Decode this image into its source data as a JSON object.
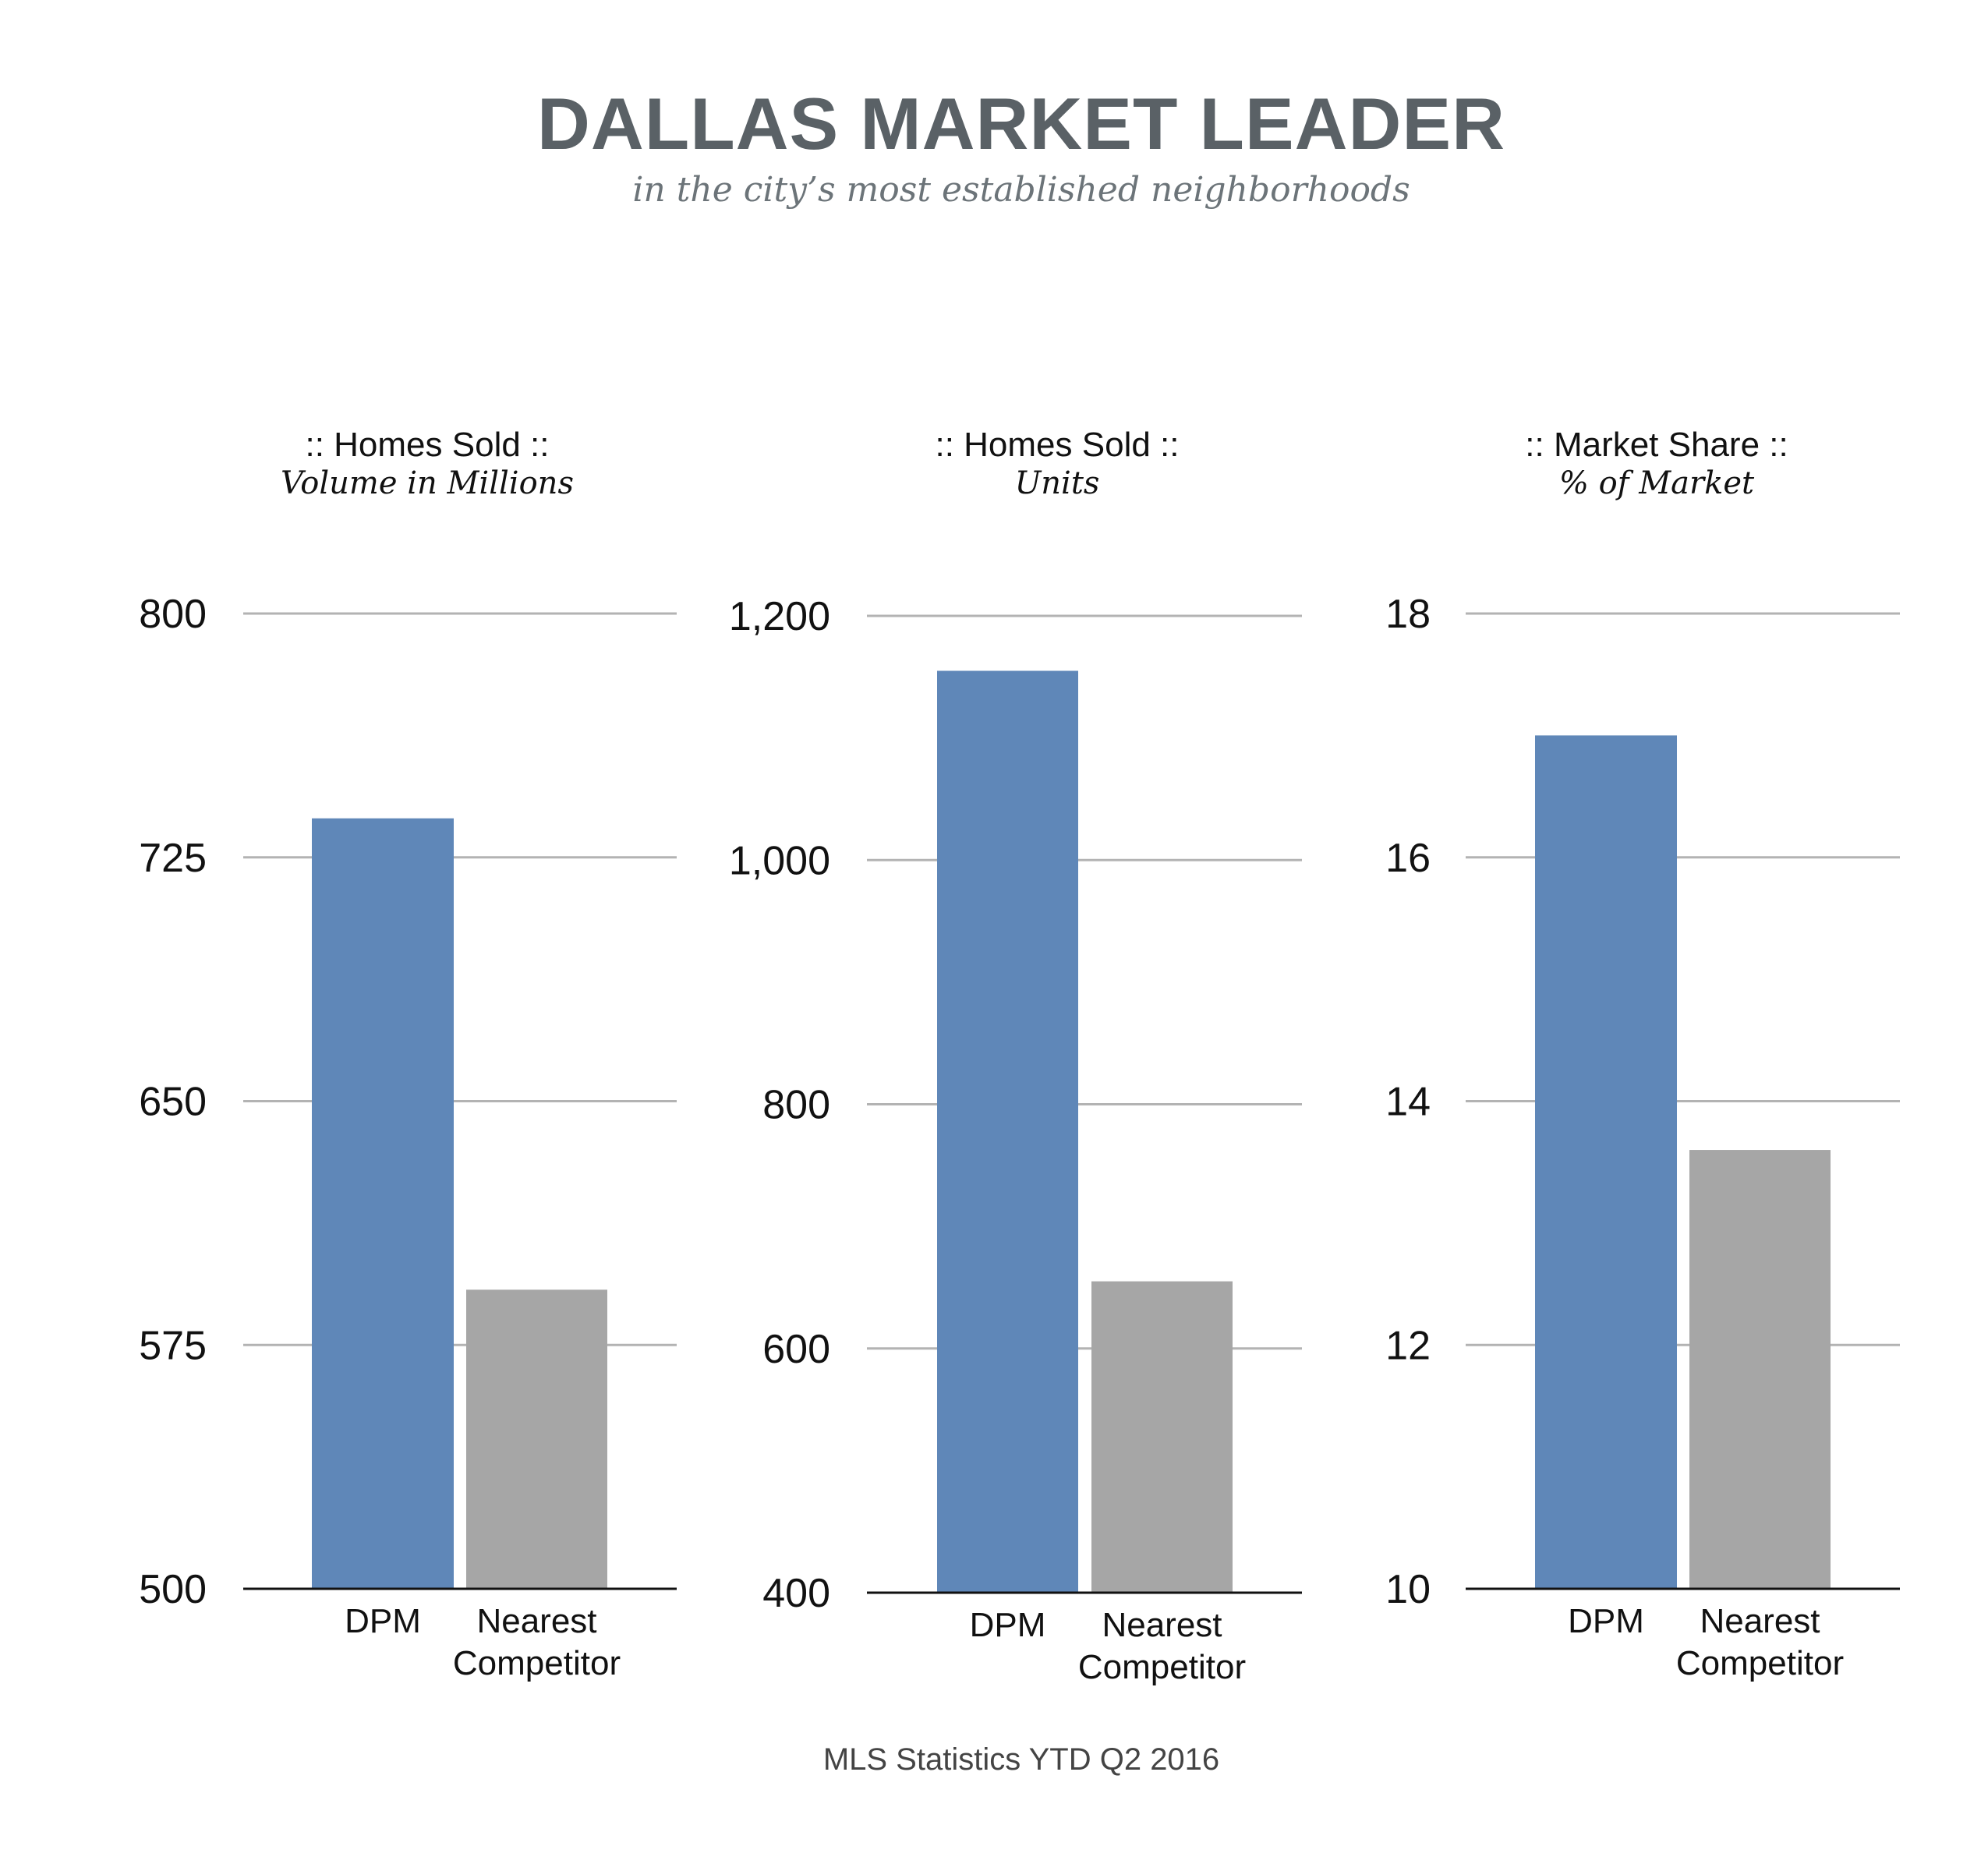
{
  "header": {
    "title": "DALLAS MARKET LEADER",
    "subtitle": "in the city’s most established neighborhoods"
  },
  "footer": {
    "source": "MLS Statistics YTD Q2 2016"
  },
  "colors": {
    "dpm": "#5f87b8",
    "competitor": "#a6a6a6",
    "grid": "#b3b3b3",
    "axis": "#111111"
  },
  "chart_data": [
    {
      "type": "bar",
      "title": ":: Homes Sold ::",
      "subtitle": "Volume in Millions",
      "categories": [
        "DPM",
        "Nearest Competitor"
      ],
      "values": [
        737,
        592
      ],
      "ylim": [
        500,
        800
      ],
      "yticks": [
        500,
        575,
        650,
        725,
        800
      ],
      "ytick_labels": [
        "500",
        "575",
        "650",
        "725",
        "800"
      ],
      "grid": true
    },
    {
      "type": "bar",
      "title": ":: Homes Sold ::",
      "subtitle": "Units",
      "categories": [
        "DPM",
        "Nearest Competitor"
      ],
      "values": [
        1155,
        655
      ],
      "ylim": [
        400,
        1200
      ],
      "yticks": [
        400,
        600,
        800,
        1000,
        1200
      ],
      "ytick_labels": [
        "400",
        "600",
        "800",
        "1,000",
        "1,200"
      ],
      "grid": true
    },
    {
      "type": "bar",
      "title": ":: Market Share ::",
      "subtitle": "% of Market",
      "categories": [
        "DPM",
        "Nearest Competitor"
      ],
      "values": [
        17,
        13.6
      ],
      "ylim": [
        10,
        18
      ],
      "yticks": [
        10,
        12,
        14,
        16,
        18
      ],
      "ytick_labels": [
        "10",
        "12",
        "14",
        "16",
        "18"
      ],
      "grid": true
    }
  ]
}
